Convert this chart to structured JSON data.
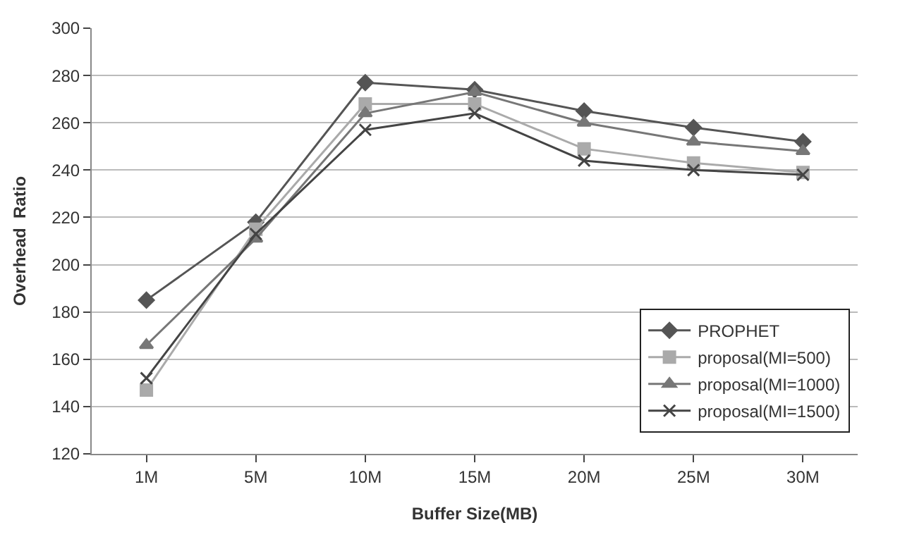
{
  "chart_data": {
    "type": "line",
    "xlabel": "Buffer Size(MB)",
    "ylabel": "Overhead  Ratio",
    "categories": [
      "1M",
      "5M",
      "10M",
      "15M",
      "20M",
      "25M",
      "30M"
    ],
    "series": [
      {
        "name": "PROPHET",
        "color": "#555555",
        "marker": "diamond",
        "values": [
          185,
          218,
          277,
          274,
          265,
          258,
          252
        ]
      },
      {
        "name": "proposal(MI=500)",
        "color": "#aaaaaa",
        "marker": "square",
        "values": [
          147,
          215,
          268,
          268,
          249,
          243,
          239
        ]
      },
      {
        "name": "proposal(MI=1000)",
        "color": "#777777",
        "marker": "triangle",
        "values": [
          166,
          211,
          264,
          273,
          260,
          252,
          248
        ]
      },
      {
        "name": "proposal(MI=1500)",
        "color": "#444444",
        "marker": "cross",
        "values": [
          152,
          213,
          257,
          264,
          244,
          240,
          238
        ]
      }
    ],
    "ylim": [
      120,
      300
    ],
    "yticks": [
      120,
      140,
      160,
      180,
      200,
      220,
      240,
      260,
      280,
      300
    ],
    "grid": "y",
    "legend": "bottom right",
    "line_style": "solid"
  }
}
